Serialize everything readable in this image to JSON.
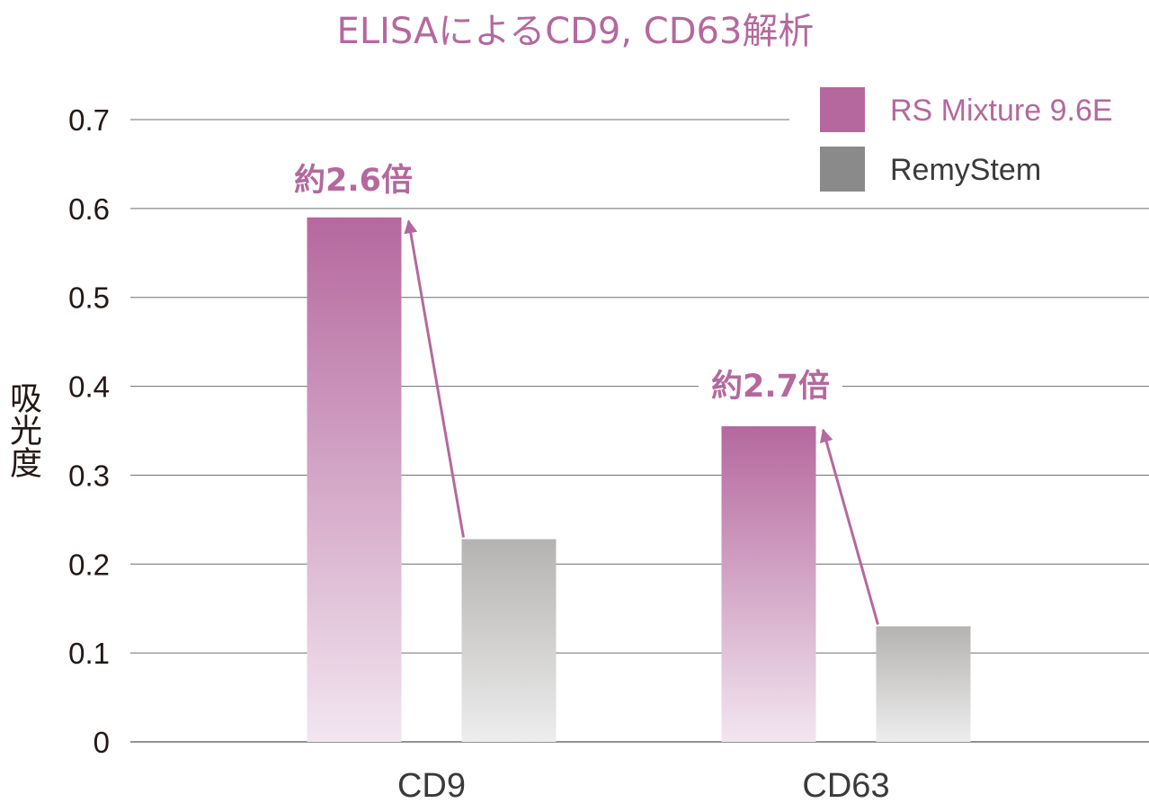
{
  "chart_data": {
    "type": "bar",
    "title": "ELISAによるCD9, CD63解析",
    "xlabel": "",
    "ylabel": "吸光度",
    "categories": [
      "CD9",
      "CD63"
    ],
    "series": [
      {
        "name": "RS Mixture 9.6E",
        "values": [
          0.59,
          0.355
        ]
      },
      {
        "name": "RemyStem",
        "values": [
          0.228,
          0.13
        ]
      }
    ],
    "ylim": [
      0,
      0.7
    ],
    "yticks": [
      0,
      0.1,
      0.2,
      0.3,
      0.4,
      0.5,
      0.6,
      0.7
    ],
    "ytick_labels": [
      "0",
      "0.1",
      "0.2",
      "0.3",
      "0.4",
      "0.5",
      "0.6",
      "0.7"
    ],
    "grid": true,
    "legend_position": "top-right",
    "annotations": [
      {
        "text": "約2.6倍",
        "category": "CD9"
      },
      {
        "text": "約2.7倍",
        "category": "CD63"
      }
    ]
  },
  "colors": {
    "accent": "#b5689e",
    "accent_light": "#f2e6f0",
    "gray": "#8a8a8a",
    "gray_bar_top": "#b5b3b1",
    "gray_bar_bottom": "#ededed",
    "grid": "#6e6e6e",
    "text_dark": "#231815",
    "text_gray": "#3a3a3a"
  }
}
